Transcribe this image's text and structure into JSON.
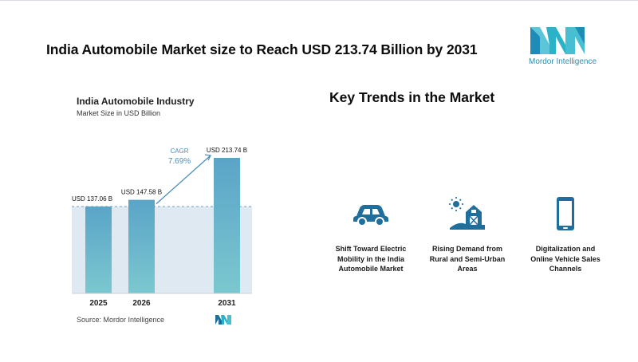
{
  "header": {
    "title": "India Automobile Market size to Reach USD 213.74 Billion by 2031",
    "logo_text": "Mordor Intelligence"
  },
  "chart_data": {
    "type": "bar",
    "title": "India Automobile Industry",
    "subtitle": "Market Size in USD Billion",
    "categories": [
      "2025",
      "2026",
      "2031"
    ],
    "values": [
      137.06,
      147.58,
      213.74
    ],
    "data_labels": [
      "USD 137.06 B",
      "USD 147.58 B",
      "USD 213.74 B"
    ],
    "cagr_label": "CAGR",
    "cagr_value": "7.69%",
    "ylim": [
      0,
      220
    ],
    "bar_color": "#5aa4c8",
    "bar_color_bottom": "#7cc8cf",
    "grid": false,
    "reference_line": true
  },
  "source": "Source: Mordor Intelligence",
  "trends": {
    "title": "Key Trends in the Market",
    "items": [
      {
        "icon": "car-icon",
        "label_lines": [
          "Shift Toward Electric",
          "Mobility in the India",
          "Automobile Market"
        ]
      },
      {
        "icon": "barn-icon",
        "label_lines": [
          "Rising Demand from",
          "Rural and Semi-Urban",
          "Areas"
        ]
      },
      {
        "icon": "smartphone-icon",
        "label_lines": [
          "Digitalization and",
          "Online Vehicle Sales",
          "Channels"
        ]
      }
    ]
  },
  "colors": {
    "accent": "#1f6e9c",
    "logo_teal": "#2ab3c8",
    "logo_blue": "#1f8bb8"
  }
}
